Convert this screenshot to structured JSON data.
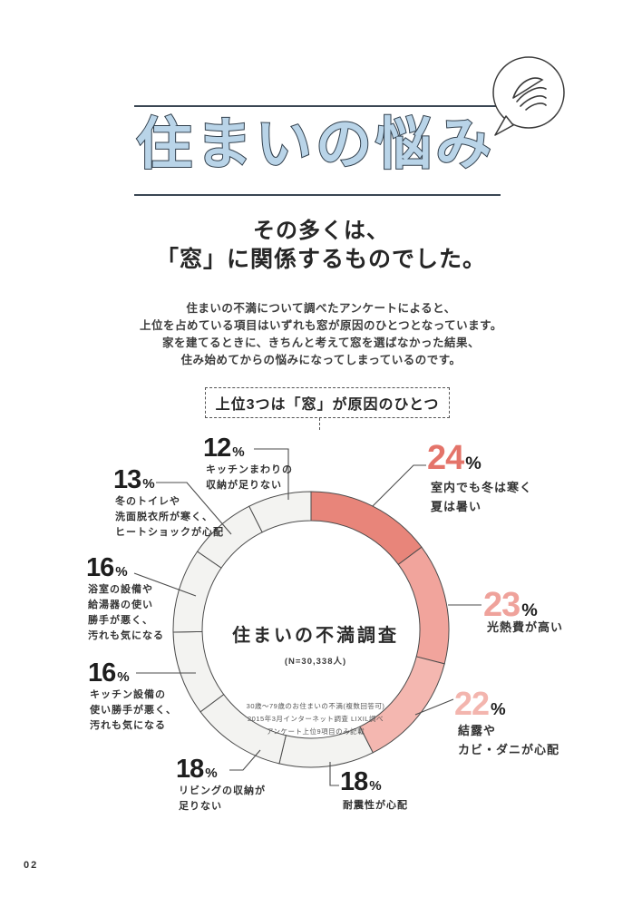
{
  "page": {
    "number": "02"
  },
  "icons": {
    "header_bubble": "hand-sketch-speech-bubble-icon"
  },
  "palette": {
    "title_fill": "#b9d4e8",
    "title_stroke": "#32404d",
    "rule": "#3a4653",
    "segment_outline": "#4b4b4b",
    "neutral_segment": "#f3f3f1"
  },
  "header": {
    "title": "住まいの悩み",
    "subtitle_line1": "その多くは、",
    "subtitle_line2": "「窓」に関係するものでした。",
    "body_lines": [
      "住まいの不満について調べたアンケートによると、",
      "上位を占めている項目はいずれも窓が原因のひとつとなっています。",
      "家を建てるときに、きちんと考えて窓を選ばなかった結果、",
      "住み始めてからの悩みになってしまっているのです。"
    ],
    "callout": "上位3つは「窓」が原因のひとつ"
  },
  "chart_data": {
    "type": "pie",
    "style": "donut",
    "title": "住まいの不満調査",
    "subtitle": "(N=30,338人)",
    "unit": "%",
    "start_angle_deg": 0,
    "direction": "clockwise",
    "footnotes": [
      "30歳〜79歳のお住まいの不満(複数回答可)",
      "2015年3月インターネット調査 LIXIL調べ",
      "アンケート上位9項目のみ記載"
    ],
    "segments": [
      {
        "value": 24,
        "unit": "%",
        "label": "室内でも冬は寒く夏は暑い",
        "label_lines": [
          "室内でも冬は寒く",
          "夏は暑い"
        ],
        "color": "#e8857a",
        "number_color": "#e4746a",
        "highlighted": true
      },
      {
        "value": 23,
        "unit": "%",
        "label": "光熱費が高い",
        "label_lines": [
          "光熱費が高い"
        ],
        "color": "#f1a49c",
        "number_color": "#efa29b",
        "highlighted": true
      },
      {
        "value": 22,
        "unit": "%",
        "label": "結露やカビ・ダニが心配",
        "label_lines": [
          "結露や",
          "カビ・ダニが心配"
        ],
        "color": "#f4b7b0",
        "number_color": "#f3b5ae",
        "highlighted": true
      },
      {
        "value": 18,
        "unit": "%",
        "label": "耐震性が心配",
        "label_lines": [
          "耐震性が心配"
        ],
        "color": "#f3f3f1",
        "number_color": "#1e1e1e",
        "highlighted": false
      },
      {
        "value": 18,
        "unit": "%",
        "label": "リビングの収納が足りない",
        "label_lines": [
          "リビングの収納が",
          "足りない"
        ],
        "color": "#f3f3f1",
        "number_color": "#1e1e1e",
        "highlighted": false
      },
      {
        "value": 16,
        "unit": "%",
        "label": "キッチン設備の使い勝手が悪く、汚れも気になる",
        "label_lines": [
          "キッチン設備の",
          "使い勝手が悪く、",
          "汚れも気になる"
        ],
        "color": "#f3f3f1",
        "number_color": "#1e1e1e",
        "highlighted": false
      },
      {
        "value": 16,
        "unit": "%",
        "label": "浴室の設備や給湯器の使い勝手が悪く、汚れも気になる",
        "label_lines": [
          "浴室の設備や",
          "給湯器の使い",
          "勝手が悪く、",
          "汚れも気になる"
        ],
        "color": "#f3f3f1",
        "number_color": "#1e1e1e",
        "highlighted": false
      },
      {
        "value": 13,
        "unit": "%",
        "label": "冬のトイレや洗面脱衣所が寒く、ヒートショックが心配",
        "label_lines": [
          "冬のトイレや",
          "洗面脱衣所が寒く、",
          "ヒートショックが心配"
        ],
        "color": "#f3f3f1",
        "number_color": "#1e1e1e",
        "highlighted": false
      },
      {
        "value": 12,
        "unit": "%",
        "label": "キッチンまわりの収納が足りない",
        "label_lines": [
          "キッチンまわりの",
          "収納が足りない"
        ],
        "color": "#f3f3f1",
        "number_color": "#1e1e1e",
        "highlighted": false
      }
    ]
  }
}
